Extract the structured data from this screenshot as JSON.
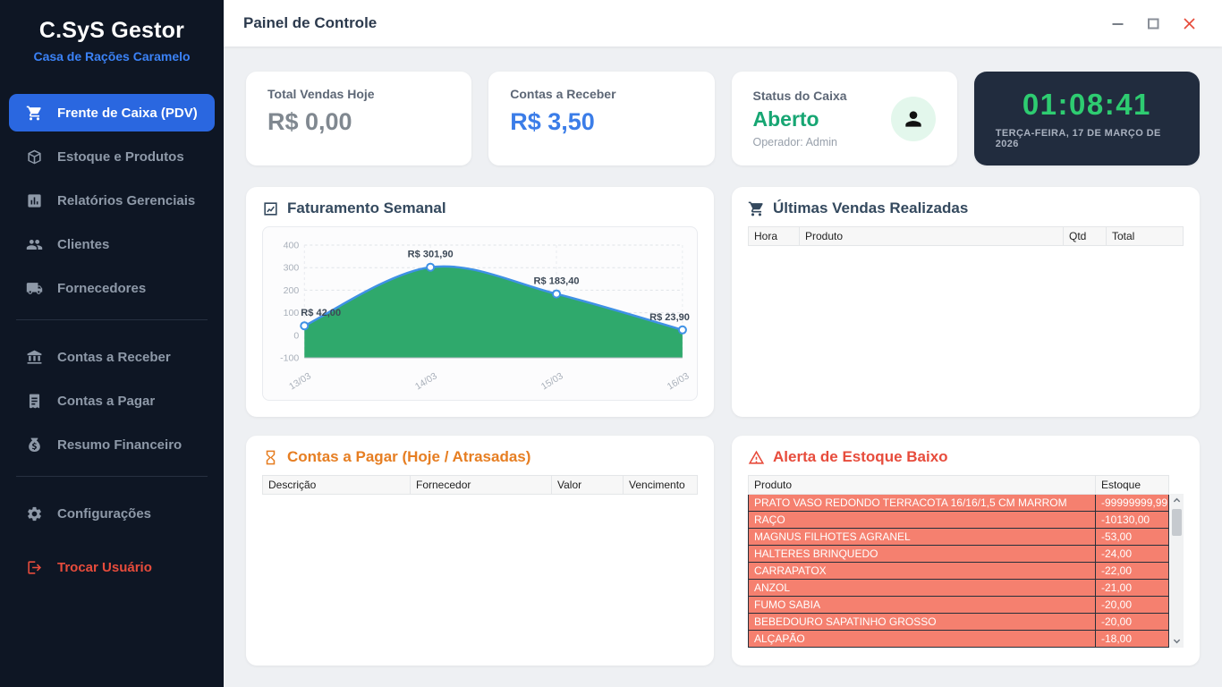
{
  "window": {
    "title": "Painel de Controle"
  },
  "sidebar": {
    "brand": {
      "title": "C.SyS Gestor",
      "subtitle": "Casa de Rações Caramelo"
    },
    "sections": [
      {
        "items": [
          {
            "label": "Frente de Caixa (PDV)",
            "icon": "cart-icon",
            "active": true
          },
          {
            "label": "Estoque e Produtos",
            "icon": "box-icon"
          },
          {
            "label": "Relatórios Gerenciais",
            "icon": "report-icon"
          },
          {
            "label": "Clientes",
            "icon": "users-icon"
          },
          {
            "label": "Fornecedores",
            "icon": "truck-icon"
          }
        ]
      },
      {
        "items": [
          {
            "label": "Contas a Receber",
            "icon": "bank-icon"
          },
          {
            "label": "Contas a Pagar",
            "icon": "invoice-icon"
          },
          {
            "label": "Resumo Financeiro",
            "icon": "moneybag-icon"
          }
        ]
      },
      {
        "items": [
          {
            "label": "Configurações",
            "icon": "gear-icon"
          },
          {
            "label": "Trocar Usuário",
            "icon": "logout-icon",
            "danger": true
          }
        ]
      }
    ]
  },
  "cards": {
    "sales_today": {
      "label": "Total Vendas Hoje",
      "value": "R$ 0,00"
    },
    "receivables": {
      "label": "Contas a Receber",
      "value": "R$ 3,50"
    },
    "cash_status": {
      "label": "Status do Caixa",
      "value": "Aberto",
      "operator": "Operador: Admin"
    },
    "clock": {
      "time": "01:08:41",
      "date": "TERÇA-FEIRA, 17 DE MARÇO DE 2026"
    }
  },
  "chart_panel": {
    "title": "Faturamento Semanal",
    "icon": "chart-icon"
  },
  "chart_data": {
    "type": "area",
    "title": "Faturamento Semanal",
    "x": [
      "13/03",
      "14/03",
      "15/03",
      "16/03"
    ],
    "values": [
      42.0,
      301.9,
      183.4,
      23.9
    ],
    "point_labels": [
      "R$ 42,00",
      "R$ 301,90",
      "R$ 183,40",
      "R$ 23,90"
    ],
    "ylim": [
      -100,
      400
    ],
    "yticks": [
      400,
      300,
      200,
      100,
      0,
      -100
    ],
    "grid": true,
    "legend": false,
    "line_color": "#3f91e5",
    "fill_color": "#2fa96c"
  },
  "sales_panel": {
    "title": "Últimas Vendas Realizadas",
    "icon": "cart-icon",
    "columns": [
      "Hora",
      "Produto",
      "Qtd",
      "Total"
    ],
    "rows": []
  },
  "payables_panel": {
    "title": "Contas a Pagar (Hoje / Atrasadas)",
    "icon": "hourglass-icon",
    "columns": [
      "Descrição",
      "Fornecedor",
      "Valor",
      "Vencimento"
    ],
    "rows": []
  },
  "stock_panel": {
    "title": "Alerta de Estoque Baixo",
    "icon": "warning-icon",
    "columns": [
      "Produto",
      "Estoque"
    ],
    "rows": [
      [
        "PRATO VASO REDONDO TERRACOTA 16/16/1,5 CM MARROM",
        "-99999999,99"
      ],
      [
        "RAÇO",
        "-10130,00"
      ],
      [
        "MAGNUS FILHOTES AGRANEL",
        "-53,00"
      ],
      [
        "HALTERES BRINQUEDO",
        "-24,00"
      ],
      [
        "CARRAPATOX",
        "-22,00"
      ],
      [
        "ANZOL",
        "-21,00"
      ],
      [
        "FUMO SABIA",
        "-20,00"
      ],
      [
        "BEBEDOURO SAPATINHO GROSSO",
        "-20,00"
      ],
      [
        "ALÇAPÃO",
        "-18,00"
      ]
    ]
  },
  "colors": {
    "sidebar_bg": "#0e1624",
    "accent_blue": "#2a67e0",
    "brand_blue": "#3b82f6",
    "value_blue": "#3b7de8",
    "status_green": "#17a673",
    "clock_green": "#2ecc71",
    "clock_bg": "#212c3e",
    "orange": "#e67e22",
    "red": "#e74c3c",
    "alert_row": "#f5806f",
    "chart_line": "#3f91e5",
    "chart_fill": "#2fa96c"
  }
}
